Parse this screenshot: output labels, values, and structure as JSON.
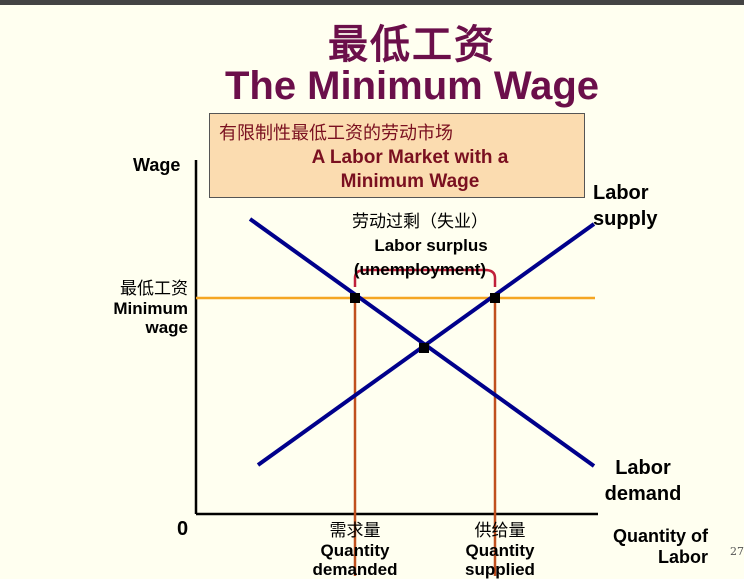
{
  "title": {
    "chinese": "最低工资",
    "english": "The Minimum Wage"
  },
  "callout": {
    "chinese": "有限制性最低工资的劳动市场",
    "english_line1": "A Labor Market with a",
    "english_line2": "Minimum Wage"
  },
  "axes": {
    "y_label": "Wage",
    "x_label_line1": "Quantity of",
    "x_label_line2": "Labor",
    "origin": "0"
  },
  "curves": {
    "supply_line1": "Labor",
    "supply_line2": "supply",
    "demand_line1": "Labor",
    "demand_line2": "demand"
  },
  "minimum_wage": {
    "chinese": "最低工资",
    "english_line1": "Minimum",
    "english_line2": "wage"
  },
  "surplus": {
    "chinese": "劳动过剩（失业）",
    "english_line1": "Labor surplus",
    "english_line2": "(unemployment)"
  },
  "quantity_demanded": {
    "chinese": "需求量",
    "english_line1": "Quantity",
    "english_line2": "demanded"
  },
  "quantity_supplied": {
    "chinese": "供给量",
    "english_line1": "Quantity",
    "english_line2": "supplied"
  },
  "page_number": "27",
  "colors": {
    "title": "#6b0f4a",
    "curves": "#00008b",
    "minimum_wage_line": "#f5a623",
    "guide_lines": "#c0501e",
    "brace": "#c0203a",
    "callout_fill": "#fbdcb0"
  }
}
